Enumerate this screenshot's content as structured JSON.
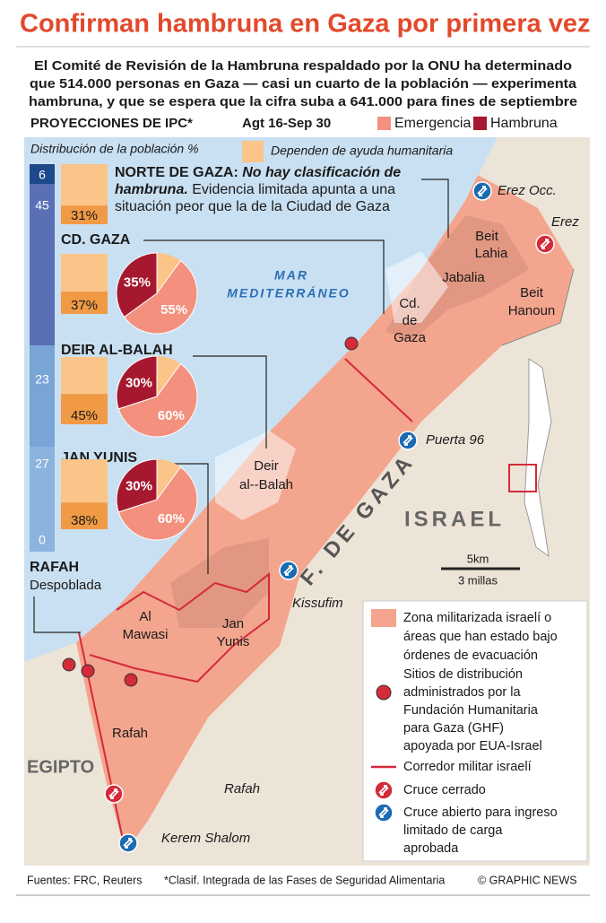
{
  "header": {
    "title": "Confirman hambruna en Gaza por primera vez",
    "subtitle": [
      "El Comité de Revisión de la Hambruna respaldado por la ONU ha determinado",
      "que 514.000 personas en Gaza — casi un cuarto de la población — experimenta",
      "hambruna, y que se espera que la cifra suba a 641.000 para fines de septiembre"
    ],
    "ipc_label": "PROYECCIONES DE IPC*",
    "period": "Agt 16-Sep 30",
    "phases": [
      "Emergencia",
      "Hambruna"
    ]
  },
  "panel": {
    "distribution_label": "Distribución de la población %",
    "aid_label": "Dependen de ayuda humanitaria",
    "regions": [
      {
        "name": "NORTE DE GAZA:",
        "note_emphasis": [
          "No hay clasificación de",
          "hambruna."
        ],
        "note": [
          "Evidencia limitada apunta a una",
          "situación peor que la de la Ciudad de Gaza"
        ],
        "population": 6,
        "aid": 31,
        "aid_label": "31%"
      },
      {
        "name": "CD. GAZA",
        "population": 45,
        "aid": 37,
        "aid_label": "37%",
        "famine": 35,
        "famine_label": "35%",
        "emergency": 55,
        "emergency_label": "55%"
      },
      {
        "name": "DEIR AL-BALAH",
        "population": 23,
        "aid": 45,
        "aid_label": "45%",
        "famine": 30,
        "famine_label": "30%",
        "emergency": 60,
        "emergency_label": "60%"
      },
      {
        "name": "JAN YUNIS",
        "population": 27,
        "aid": 38,
        "aid_label": "38%",
        "famine": 30,
        "famine_label": "30%",
        "emergency": 60,
        "emergency_label": "60%"
      },
      {
        "name": "RAFAH",
        "status": "Despoblada",
        "population": 0
      }
    ]
  },
  "map": {
    "sea": [
      "MAR",
      "MEDITERRÁNEO"
    ],
    "places": {
      "beit_lahia": [
        "Beit",
        "Lahia"
      ],
      "jabalia": "Jabalia",
      "beit_hanoun": [
        "Beit",
        "Hanoun"
      ],
      "gaza_city": [
        "Cd.",
        "de",
        "Gaza"
      ],
      "deir_al_balah": [
        "Deir",
        "al--Balah"
      ],
      "al_mawasi": [
        "Al",
        "Mawasi"
      ],
      "jan_yunis": [
        "Jan",
        "Yunis"
      ],
      "rafah": "Rafah"
    },
    "countries": {
      "israel": "ISRAEL",
      "egypt": "EGIPTO",
      "strip": "F. DE GAZA"
    },
    "crossings": {
      "erez_west": "Erez Occ.",
      "erez": "Erez",
      "gate_96": "Puerta 96",
      "kissufim": "Kissufim",
      "rafah": "Rafah",
      "kerem_shalom": "Kerem Shalom"
    },
    "scale": {
      "km": "5km",
      "miles": "3 millas"
    }
  },
  "legend": {
    "zone": [
      "Zona militarizada israelí o",
      "áreas que han estado bajo",
      "órdenes de evacuación"
    ],
    "sites": [
      "Sitios de distribución",
      "administrados por la",
      "Fundación Humanitaria",
      "para Gaza (GHF)",
      "apoyada por EUA-Israel"
    ],
    "corridor": "Corredor militar israelí",
    "closed": "Cruce cerrado",
    "open": [
      "Cruce abierto para ingreso",
      "limitado de carga",
      "aprobada"
    ]
  },
  "footer": {
    "sources": "Fuentes: FRC, Reuters",
    "note": "*Clasif. Integrada de las Fases de Seguridad Alimentaria",
    "credit": "© GRAPHIC NEWS"
  }
}
